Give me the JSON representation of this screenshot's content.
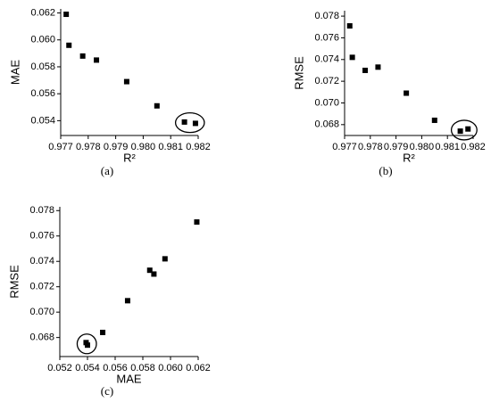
{
  "chart_data": [
    {
      "type": "scatter",
      "caption": "(a)",
      "x_label": "R²",
      "y_label": "MAE",
      "color": "#000000",
      "x": [
        0.9772,
        0.9773,
        0.9778,
        0.9783,
        0.9794,
        0.9805,
        0.9815,
        0.9819
      ],
      "values": [
        0.0619,
        0.0596,
        0.0588,
        0.0585,
        0.0569,
        0.0551,
        0.0539,
        0.0538
      ],
      "xlim": [
        0.977,
        0.982
      ],
      "ylim": [
        0.0529,
        0.0623
      ],
      "xticks": [
        0.977,
        0.978,
        0.979,
        {
          "value": 0.98,
          "label": "0.980"
        },
        0.981,
        0.982
      ],
      "yticks": [
        0.054,
        0.056,
        0.058,
        {
          "value": 0.06,
          "label": "0.060"
        },
        0.062
      ]
    },
    {
      "type": "scatter",
      "caption": "(b)",
      "x_label": "R²",
      "y_label": "RMSE",
      "color": "#000000",
      "x": [
        0.9772,
        0.9773,
        0.9778,
        0.9783,
        0.9794,
        0.9805,
        0.9815,
        0.9818
      ],
      "values": [
        0.0771,
        0.0742,
        0.073,
        0.0733,
        0.0709,
        0.0684,
        0.0674,
        0.0676
      ],
      "xlim": [
        0.977,
        0.982
      ],
      "ylim": [
        0.067,
        0.0785
      ],
      "xticks": [
        0.977,
        0.978,
        0.979,
        {
          "value": 0.98,
          "label": "0.980"
        },
        0.981,
        0.982
      ],
      "yticks": [
        0.068,
        {
          "value": 0.07,
          "label": "0.070"
        },
        0.072,
        0.074,
        0.076,
        0.078
      ]
    },
    {
      "type": "scatter",
      "caption": "(c)",
      "x_label": "MAE",
      "y_label": "RMSE",
      "color": "#000000",
      "x": [
        0.0619,
        0.0596,
        0.0588,
        0.0585,
        0.0569,
        0.0551,
        0.0539,
        0.054
      ],
      "values": [
        0.0771,
        0.0742,
        0.073,
        0.0733,
        0.0709,
        0.0684,
        0.0676,
        0.0674
      ],
      "xlim": [
        0.052,
        0.062
      ],
      "ylim": [
        0.0665,
        0.0783
      ],
      "xticks": [
        0.052,
        0.054,
        0.056,
        0.058,
        {
          "value": 0.06,
          "label": "0.060"
        },
        0.062
      ],
      "yticks": [
        0.068,
        {
          "value": 0.07,
          "label": "0.070"
        },
        0.072,
        0.074,
        0.076,
        0.078
      ]
    }
  ]
}
